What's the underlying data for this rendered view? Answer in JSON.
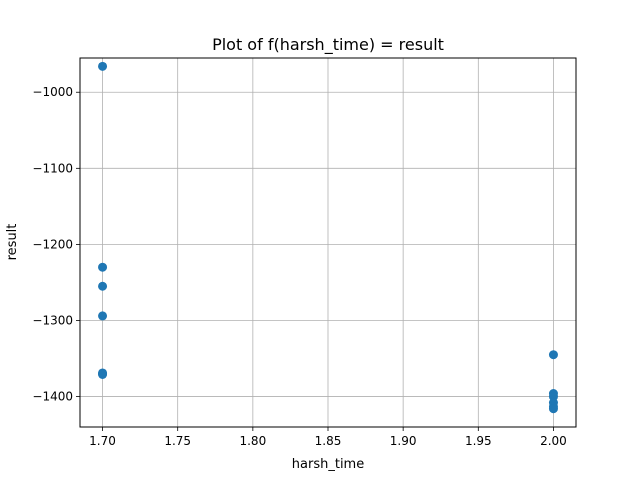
{
  "chart_data": {
    "type": "scatter",
    "title": "Plot of f(harsh_time) = result",
    "xlabel": "harsh_time",
    "ylabel": "result",
    "xlim": [
      1.685,
      2.015
    ],
    "ylim": [
      -1440,
      -955
    ],
    "xticks": [
      1.7,
      1.75,
      1.8,
      1.85,
      1.9,
      1.95,
      2.0
    ],
    "xtick_labels": [
      "1.70",
      "1.75",
      "1.80",
      "1.85",
      "1.90",
      "1.95",
      "2.00"
    ],
    "yticks": [
      -1400,
      -1300,
      -1200,
      -1100,
      -1000
    ],
    "ytick_labels": [
      "−1400",
      "−1300",
      "−1200",
      "−1100",
      "−1000"
    ],
    "grid": true,
    "marker_color": "#1f77b4",
    "points": [
      {
        "x": 1.7,
        "y": -966
      },
      {
        "x": 1.7,
        "y": -1230
      },
      {
        "x": 1.7,
        "y": -1255
      },
      {
        "x": 1.7,
        "y": -1294
      },
      {
        "x": 1.7,
        "y": -1369
      },
      {
        "x": 1.7,
        "y": -1370
      },
      {
        "x": 1.7,
        "y": -1371
      },
      {
        "x": 2.0,
        "y": -1345
      },
      {
        "x": 2.0,
        "y": -1396
      },
      {
        "x": 2.0,
        "y": -1400
      },
      {
        "x": 2.0,
        "y": -1408
      },
      {
        "x": 2.0,
        "y": -1413
      },
      {
        "x": 2.0,
        "y": -1416
      }
    ]
  }
}
